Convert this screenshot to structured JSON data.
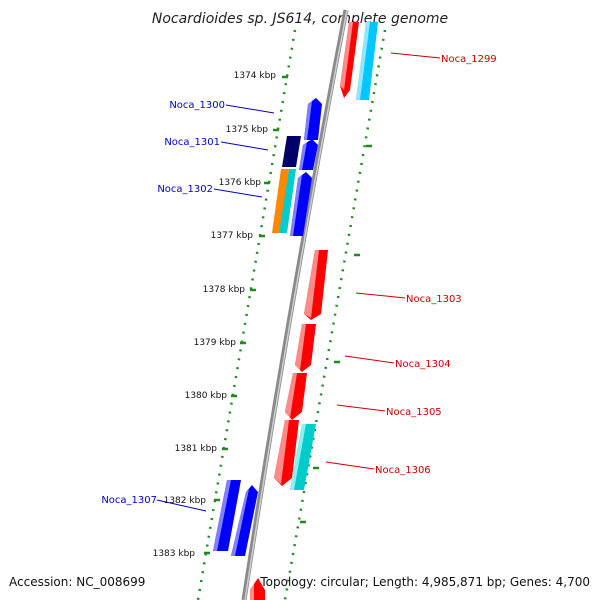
{
  "title": "Nocardioides sp. JS614, complete genome",
  "footer": {
    "accession": "Accession: NC_008699",
    "topology": "Topology: circular; Length: 4,985,871 bp; Genes: 4,700"
  },
  "colors": {
    "backbone": "#8a8a8a",
    "tick_dots": "#1f8a1f",
    "forward_label": "#0000cc",
    "reverse_label": "#cc0000",
    "gene_red": "#ff0000",
    "gene_blue": "#0000ff",
    "gene_navy": "#000066",
    "gene_cyan": "#00cccc",
    "gene_orange": "#ff8800"
  },
  "scale_ticks": [
    "1374 kbp",
    "1375 kbp",
    "1376 kbp",
    "1377 kbp",
    "1378 kbp",
    "1379 kbp",
    "1380 kbp",
    "1381 kbp",
    "1382 kbp",
    "1383 kbp"
  ],
  "gene_labels": {
    "left": [
      "Noca_1300",
      "Noca_1301",
      "Noca_1302",
      "Noca_1307"
    ],
    "right": [
      "Noca_1299",
      "Noca_1303",
      "Noca_1304",
      "Noca_1305",
      "Noca_1306"
    ]
  }
}
